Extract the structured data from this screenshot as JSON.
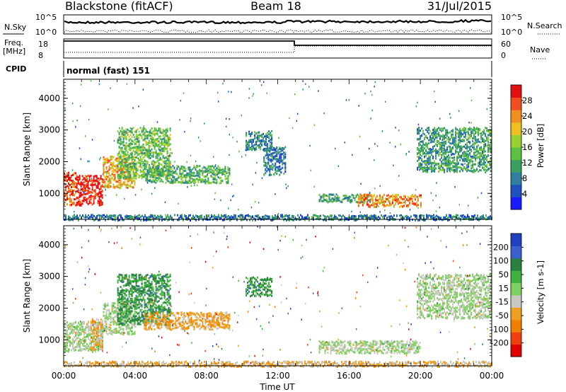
{
  "header": {
    "station": "Blackstone (fitACF)",
    "beam": "Beam 18",
    "date": "31/Jul/2015"
  },
  "noise_panel": {
    "left_label": "N.Sky",
    "right_label": "N.Search",
    "left_ticks": [
      "10^5",
      "10^0"
    ],
    "right_ticks": [
      "10^5",
      "10^0"
    ]
  },
  "freq_panel": {
    "label_line1": "Freq.",
    "label_line2": "[MHz]",
    "right_label": "Nave",
    "left_ticks": [
      "18",
      "8"
    ],
    "right_ticks": [
      "60",
      "0"
    ]
  },
  "cpid": {
    "label": "CPID",
    "value": "normal (fast) 151"
  },
  "chart_data": [
    {
      "type": "heatmap",
      "title": "",
      "quantity": "Power",
      "colorbar_label": "Power [dB]",
      "colorbar_ticks": [
        4,
        8,
        12,
        16,
        20,
        24,
        28
      ],
      "colorbar_colors": [
        "#1a1aff",
        "#2050c0",
        "#2e7fa0",
        "#3aa060",
        "#5cc040",
        "#9ad030",
        "#f0c020",
        "#f09020",
        "#f05020",
        "#e01010"
      ],
      "ylabel": "Slant Range [km]",
      "yticks": [
        1000,
        2000,
        3000,
        4000
      ],
      "ylim": [
        180,
        4600
      ],
      "xlim_hours": [
        0,
        24
      ],
      "echo_regions": [
        {
          "t0": 0.0,
          "t1": 0.7,
          "r0": 650,
          "r1": 1700,
          "level": 0.85
        },
        {
          "t0": 0.7,
          "t1": 2.2,
          "r0": 650,
          "r1": 1600,
          "level": 0.95
        },
        {
          "t0": 2.2,
          "t1": 4.0,
          "r0": 1200,
          "r1": 2200,
          "level": 0.7
        },
        {
          "t0": 3.0,
          "t1": 6.0,
          "r0": 1500,
          "r1": 3100,
          "level": 0.45
        },
        {
          "t0": 4.5,
          "t1": 9.3,
          "r0": 1350,
          "r1": 1900,
          "level": 0.4
        },
        {
          "t0": 10.2,
          "t1": 11.7,
          "r0": 2400,
          "r1": 3000,
          "level": 0.3
        },
        {
          "t0": 11.2,
          "t1": 12.4,
          "r0": 1600,
          "r1": 2500,
          "level": 0.25
        },
        {
          "t0": 14.3,
          "t1": 17.2,
          "r0": 750,
          "r1": 1000,
          "level": 0.35
        },
        {
          "t0": 16.5,
          "t1": 20.0,
          "r0": 600,
          "r1": 1000,
          "level": 0.75
        },
        {
          "t0": 19.8,
          "t1": 24.0,
          "r0": 1700,
          "r1": 3100,
          "level": 0.35
        },
        {
          "t0": 0.0,
          "t1": 24.0,
          "r0": 180,
          "r1": 350,
          "level": 0.25
        }
      ]
    },
    {
      "type": "heatmap",
      "title": "",
      "quantity": "Velocity",
      "colorbar_label": "Velocity [m s-1]",
      "colorbar_ticks": [
        200,
        100,
        50,
        15,
        -15,
        -50,
        -100,
        -200
      ],
      "colorbar_colors": [
        "#2040c0",
        "#3a60d0",
        "#2a8040",
        "#40b040",
        "#80d060",
        "#c8c8c0",
        "#f0a020",
        "#f08000",
        "#f04010",
        "#e00000"
      ],
      "ylabel": "Slant Range [km]",
      "yticks": [
        1000,
        2000,
        3000,
        4000
      ],
      "ylim": [
        180,
        4600
      ],
      "xlim_hours": [
        0,
        24
      ],
      "xlabel": "Time UT",
      "xticks": [
        "00:00",
        "04:00",
        "08:00",
        "12:00",
        "16:00",
        "20:00",
        "00:00"
      ],
      "echo_regions": [
        {
          "t0": 0.0,
          "t1": 2.2,
          "r0": 650,
          "r1": 1600,
          "level": 0.5
        },
        {
          "t0": 1.5,
          "t1": 2.2,
          "r0": 700,
          "r1": 1700,
          "level": 0.65
        },
        {
          "t0": 2.2,
          "t1": 4.0,
          "r0": 1200,
          "r1": 2200,
          "level": 0.5
        },
        {
          "t0": 3.0,
          "t1": 6.0,
          "r0": 1500,
          "r1": 3100,
          "level": 0.3
        },
        {
          "t0": 4.5,
          "t1": 9.3,
          "r0": 1350,
          "r1": 1900,
          "level": 0.65
        },
        {
          "t0": 10.2,
          "t1": 11.7,
          "r0": 2400,
          "r1": 3000,
          "level": 0.3
        },
        {
          "t0": 14.3,
          "t1": 20.0,
          "r0": 600,
          "r1": 1000,
          "level": 0.5
        },
        {
          "t0": 19.8,
          "t1": 24.0,
          "r0": 1700,
          "r1": 3100,
          "level": 0.5
        },
        {
          "t0": 0.0,
          "t1": 24.0,
          "r0": 180,
          "r1": 350,
          "level": 0.62
        }
      ]
    }
  ]
}
